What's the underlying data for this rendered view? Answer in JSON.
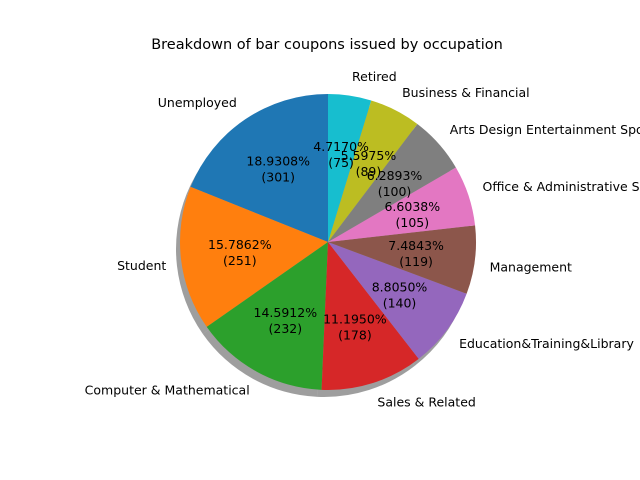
{
  "chart_data": {
    "type": "pie",
    "title": "Breakdown of bar coupons issued by occupation",
    "start_angle_deg": 90,
    "direction": "counterclockwise",
    "shadow": true,
    "slices": [
      {
        "label": "Unemployed",
        "value": 301,
        "percent_label": "18.9308%",
        "count_label": "(301)",
        "color": "#1f77b4"
      },
      {
        "label": "Student",
        "value": 251,
        "percent_label": "15.7862%",
        "count_label": "(251)",
        "color": "#ff7f0e"
      },
      {
        "label": "Computer & Mathematical",
        "value": 232,
        "percent_label": "14.5912%",
        "count_label": "(232)",
        "color": "#2ca02c"
      },
      {
        "label": "Sales & Related",
        "value": 178,
        "percent_label": "11.1950%",
        "count_label": "(178)",
        "color": "#d62728"
      },
      {
        "label": "Education&Training&Library",
        "value": 140,
        "percent_label": "8.8050%",
        "count_label": "(140)",
        "color": "#9467bd"
      },
      {
        "label": "Management",
        "value": 119,
        "percent_label": "7.4843%",
        "count_label": "(119)",
        "color": "#8c564b"
      },
      {
        "label": "Office & Administrative Support",
        "value": 105,
        "percent_label": "6.6038%",
        "count_label": "(105)",
        "color": "#e377c2"
      },
      {
        "label": "Arts Design Entertainment Sports & Media",
        "value": 100,
        "percent_label": "6.2893%",
        "count_label": "(100)",
        "color": "#7f7f7f"
      },
      {
        "label": "Business & Financial",
        "value": 89,
        "percent_label": "5.5975%",
        "count_label": "(89)",
        "color": "#bcbd22"
      },
      {
        "label": "Retired",
        "value": 75,
        "percent_label": "4.7170%",
        "count_label": "(75)",
        "color": "#17becf"
      }
    ]
  }
}
